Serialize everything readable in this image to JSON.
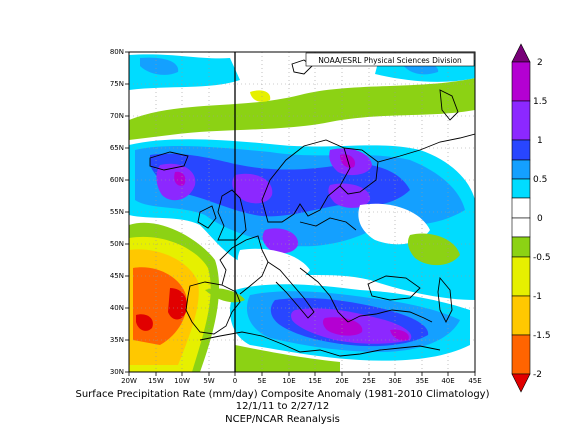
{
  "map": {
    "credit": "NOAA/ESRL Physical Sciences Division",
    "lat_labels": [
      "30N",
      "35N",
      "40N",
      "45N",
      "50N",
      "55N",
      "60N",
      "65N",
      "70N",
      "75N",
      "80N"
    ],
    "lon_labels": [
      "20W",
      "15W",
      "10W",
      "5W",
      "0",
      "5E",
      "10E",
      "15E",
      "20E",
      "25E",
      "30E",
      "35E",
      "40E",
      "45E"
    ]
  },
  "colorbar": {
    "tick_labels": [
      "2",
      "1.5",
      "1",
      "0.5",
      "0",
      "-0.5",
      "-1",
      "-1.5",
      "-2"
    ],
    "colors": {
      "gt_2": "#780078",
      "1.5_2": "#b400d2",
      "1_1.5": "#8c28ff",
      "0.5_1": "#2846ff",
      "0.25_0.5": "#14a0ff",
      "0_0.25": "#00dcff",
      "-0.25_0": "#ffffff",
      "-0.5_-0.25": "#8cd214",
      "-1_-0.5": "#e6f000",
      "-1.5_-1": "#ffc800",
      "-2_-1.5": "#ff6400",
      "lt_-2": "#e10000"
    }
  },
  "caption": {
    "line1": "Surface Precipitation Rate (mm/day) Composite Anomaly (1981-2010 Climatology)",
    "line2": "12/1/11  to 2/27/12",
    "line3": "NCEP/NCAR Reanalysis"
  }
}
